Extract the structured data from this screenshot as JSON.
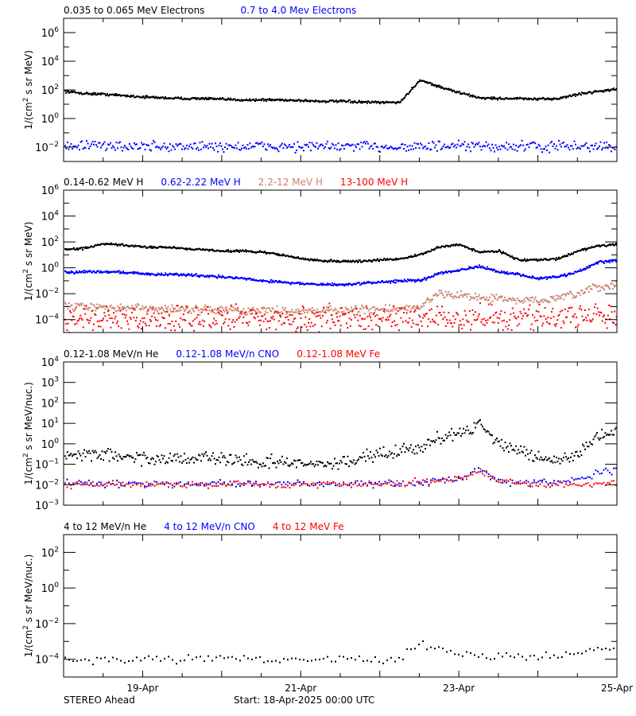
{
  "footer": {
    "spacecraft": "STEREO Ahead",
    "start": "Start: 18-Apr-2025 00:00 UTC"
  },
  "colors": {
    "black": "#000000",
    "blue": "#0000ff",
    "brown": "#c8826a",
    "red": "#ff0000"
  },
  "chart_data": [
    {
      "type": "scatter",
      "yscale": "log",
      "ylim": [
        0.001,
        10000000
      ],
      "yticks_exponents": [
        6,
        4,
        2,
        0,
        -2
      ],
      "ylabel": {
        "pre": "1/(cm",
        "sup": "2",
        "post": " s sr MeV)"
      },
      "xlim": [
        "2025-04-18T00",
        "2025-04-25T00"
      ],
      "series": [
        {
          "name": "0.035 to 0.065 MeV Electrons",
          "color": "#000000",
          "values": [
            80,
            56,
            50,
            40,
            32,
            28,
            25,
            25,
            22,
            20,
            20,
            20,
            18,
            16,
            16,
            14,
            13,
            14,
            500,
            160,
            63,
            28,
            25,
            25,
            22,
            25,
            50,
            80,
            112
          ]
        },
        {
          "name": "0.7 to 4.0 Mev Electrons",
          "color": "#0000ff",
          "values": [
            0.014,
            0.013,
            0.012,
            0.012,
            0.011,
            0.011,
            0.011,
            0.011,
            0.011,
            0.011,
            0.011,
            0.011,
            0.011,
            0.011,
            0.011,
            0.011,
            0.011,
            0.011,
            0.011,
            0.011,
            0.011,
            0.011,
            0.011,
            0.011,
            0.011,
            0.011,
            0.011,
            0.011,
            0.011
          ]
        }
      ]
    },
    {
      "type": "scatter",
      "yscale": "log",
      "ylim": [
        1e-05,
        1000000
      ],
      "yticks_exponents": [
        6,
        4,
        2,
        0,
        -2,
        -4
      ],
      "ylabel": {
        "pre": "1/(cm",
        "sup": "2",
        "post": " s sr MeV)"
      },
      "xlim": [
        "2025-04-18T00",
        "2025-04-25T00"
      ],
      "series": [
        {
          "name": "0.14-0.62 MeV H",
          "color": "#000000",
          "values": [
            25,
            32,
            70,
            56,
            40,
            40,
            32,
            25,
            20,
            20,
            16,
            10,
            5,
            3.5,
            3.2,
            3.2,
            4,
            5,
            10,
            40,
            63,
            16,
            20,
            4,
            4,
            5,
            20,
            50,
            63
          ]
        },
        {
          "name": "0.62-2.22 MeV H",
          "color": "#0000ff",
          "values": [
            0.4,
            0.5,
            0.5,
            0.45,
            0.35,
            0.3,
            0.3,
            0.25,
            0.2,
            0.15,
            0.1,
            0.08,
            0.06,
            0.05,
            0.05,
            0.06,
            0.08,
            0.1,
            0.1,
            0.4,
            0.7,
            1.2,
            0.5,
            0.3,
            0.15,
            0.2,
            0.5,
            2.5,
            4
          ]
        },
        {
          "name": "2.2-12 MeV H",
          "color": "#c8826a",
          "values": [
            0.001,
            0.001,
            0.0008,
            0.0008,
            0.0007,
            0.0007,
            0.0006,
            0.0006,
            0.0006,
            0.0005,
            0.0005,
            0.0005,
            0.0005,
            0.0005,
            0.0005,
            0.0006,
            0.0006,
            0.0006,
            0.001,
            0.01,
            0.008,
            0.005,
            0.004,
            0.003,
            0.003,
            0.004,
            0.01,
            0.03,
            0.05
          ]
        },
        {
          "name": "13-100 MeV H",
          "color": "#ff0000",
          "values": [
            0.00015,
            0.00015,
            0.00015,
            0.00015,
            0.00015,
            0.00015,
            0.00015,
            0.00015,
            0.00015,
            0.00015,
            0.00015,
            0.00015,
            0.00015,
            0.00015,
            0.00015,
            0.00015,
            0.00015,
            0.00015,
            0.00015,
            0.00015,
            0.00015,
            0.00015,
            0.00015,
            0.00015,
            0.00015,
            0.00015,
            0.00015,
            0.00015,
            0.00015
          ]
        }
      ]
    },
    {
      "type": "scatter",
      "yscale": "log",
      "ylim": [
        0.001,
        10000
      ],
      "yticks_exponents": [
        4,
        3,
        2,
        1,
        0,
        -1,
        -2,
        -3
      ],
      "ylabel": {
        "pre": "1/(cm",
        "sup": "2",
        "post": " s sr MeV/nuc.)"
      },
      "xlim": [
        "2025-04-18T00",
        "2025-04-25T00"
      ],
      "series": [
        {
          "name": "0.12-1.08 MeV/n He",
          "color": "#000000",
          "values": [
            0.3,
            0.3,
            0.3,
            0.25,
            0.2,
            0.2,
            0.2,
            0.2,
            0.15,
            0.15,
            0.12,
            0.12,
            0.1,
            0.1,
            0.12,
            0.2,
            0.3,
            0.5,
            0.6,
            2,
            3,
            10,
            1,
            0.5,
            0.2,
            0.15,
            0.3,
            3,
            4
          ]
        },
        {
          "name": "0.12-1.08 MeV/n CNO",
          "color": "#0000ff",
          "values": [
            0.012,
            0.012,
            0.011,
            0.011,
            0.011,
            0.011,
            0.011,
            0.011,
            0.011,
            0.011,
            0.011,
            0.011,
            0.011,
            0.011,
            0.011,
            0.011,
            0.011,
            0.012,
            0.013,
            0.015,
            0.02,
            0.06,
            0.015,
            0.013,
            0.012,
            0.012,
            0.015,
            0.04,
            0.05
          ]
        },
        {
          "name": "0.12-1.08 MeV Fe",
          "color": "#ff0000",
          "values": [
            0.01,
            0.01,
            0.01,
            0.01,
            0.01,
            0.01,
            0.01,
            0.01,
            0.01,
            0.01,
            0.01,
            0.01,
            0.01,
            0.01,
            0.01,
            0.01,
            0.01,
            0.012,
            0.013,
            0.015,
            0.02,
            0.05,
            0.015,
            0.012,
            0.01,
            0.01,
            0.01,
            0.012,
            0.012
          ]
        }
      ]
    },
    {
      "type": "scatter",
      "yscale": "log",
      "ylim": [
        1e-05,
        1000
      ],
      "yticks_exponents": [
        2,
        0,
        -2,
        -4
      ],
      "ylabel": {
        "pre": "1/(cm",
        "sup": "2",
        "post": " s sr MeV/nuc.)"
      },
      "xlim": [
        "2025-04-18T00",
        "2025-04-25T00"
      ],
      "xtick_labels": [
        "19-Apr",
        "21-Apr",
        "23-Apr",
        "25-Apr"
      ],
      "xtick_times": [
        "2025-04-19T00",
        "2025-04-21T00",
        "2025-04-23T00",
        "2025-04-25T00"
      ],
      "series": [
        {
          "name": "4 to 12 MeV/n He",
          "color": "#000000",
          "values": [
            0.0001,
            0.0001,
            0.0001,
            0.0001,
            0.0001,
            0.0001,
            0.0001,
            0.0001,
            0.0001,
            0.0001,
            0.0001,
            0.0001,
            0.0001,
            0.0001,
            0.0001,
            0.0001,
            0.0001,
            0.0001,
            0.001,
            0.0004,
            0.0002,
            0.00015,
            0.00015,
            0.00015,
            0.00015,
            0.00015,
            0.0002,
            0.0004,
            0.0005
          ]
        },
        {
          "name": "4 to 12 MeV/n CNO",
          "color": "#0000ff",
          "values": []
        },
        {
          "name": "4 to 12 MeV Fe",
          "color": "#ff0000",
          "values": []
        }
      ]
    }
  ],
  "times": [
    "2025-04-18T00",
    "2025-04-18T06",
    "2025-04-18T12",
    "2025-04-18T18",
    "2025-04-19T00",
    "2025-04-19T06",
    "2025-04-19T12",
    "2025-04-19T18",
    "2025-04-20T00",
    "2025-04-20T06",
    "2025-04-20T12",
    "2025-04-20T18",
    "2025-04-21T00",
    "2025-04-21T06",
    "2025-04-21T12",
    "2025-04-21T18",
    "2025-04-22T00",
    "2025-04-22T06",
    "2025-04-22T12",
    "2025-04-22T18",
    "2025-04-23T00",
    "2025-04-23T06",
    "2025-04-23T12",
    "2025-04-23T18",
    "2025-04-24T00",
    "2025-04-24T06",
    "2025-04-24T12",
    "2025-04-24T18",
    "2025-04-25T00"
  ]
}
